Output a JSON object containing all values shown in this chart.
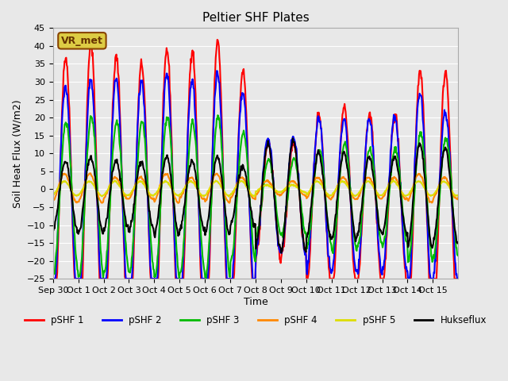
{
  "title": "Peltier SHF Plates",
  "ylabel": "Soil Heat Flux (W/m2)",
  "xlabel": "Time",
  "ylim": [
    -25,
    45
  ],
  "plot_bg_color": "#e8e8e8",
  "series": {
    "pSHF 1": {
      "color": "#ff0000",
      "lw": 1.5
    },
    "pSHF 2": {
      "color": "#0000ff",
      "lw": 1.5
    },
    "pSHF 3": {
      "color": "#00bb00",
      "lw": 1.5
    },
    "pSHF 4": {
      "color": "#ff8800",
      "lw": 1.5
    },
    "pSHF 5": {
      "color": "#dddd00",
      "lw": 1.5
    },
    "Hukseflux": {
      "color": "#000000",
      "lw": 1.5
    }
  },
  "xtick_labels": [
    "Sep 30",
    "Oct 1",
    "Oct 2",
    "Oct 3",
    "Oct 4",
    "Oct 5",
    "Oct 6",
    "Oct 7",
    "Oct 8",
    "Oct 9",
    "Oct 10",
    "Oct 11",
    "Oct 12",
    "Oct 13",
    "Oct 14",
    "Oct 15"
  ],
  "annotation": "VR_met",
  "annotation_bbox_face": "#ddcc44",
  "annotation_bbox_edge": "#884400"
}
